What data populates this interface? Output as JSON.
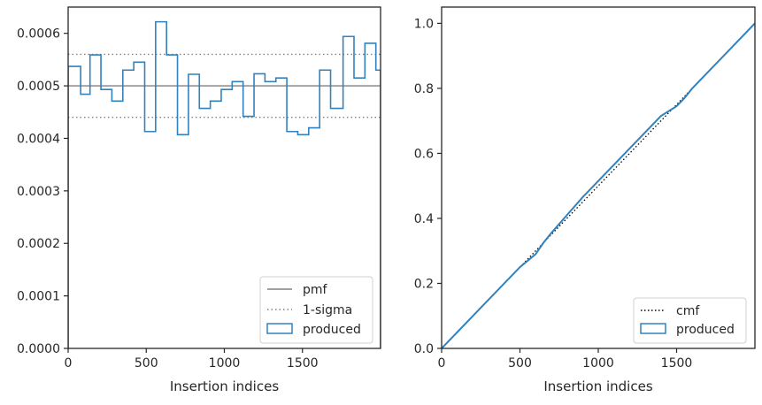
{
  "colors": {
    "produced": "#3182bd",
    "reference": "#808080",
    "cmf": "#000000",
    "axes": "#262626"
  },
  "chart_data": [
    {
      "type": "line",
      "step": true,
      "title": "",
      "xlabel": "Insertion indices",
      "ylabel": "",
      "xlim": [
        0,
        2000
      ],
      "ylim": [
        0,
        0.00065
      ],
      "x_ticks": [
        0,
        500,
        1000,
        1500
      ],
      "x_tick_labels": [
        "0",
        "500",
        "1000",
        "1500"
      ],
      "y_ticks": [
        0,
        0.0001,
        0.0002,
        0.0003,
        0.0004,
        0.0005,
        0.0006
      ],
      "y_tick_labels": [
        "0.0000",
        "0.0001",
        "0.0002",
        "0.0003",
        "0.0004",
        "0.0005",
        "0.0006"
      ],
      "legend_position": "bottom-right",
      "reference_lines": [
        {
          "name": "pmf",
          "style": "solid",
          "y": 0.0005
        },
        {
          "name": "1-sigma",
          "style": "dotted",
          "y": [
            0.00044,
            0.00056
          ]
        }
      ],
      "series": [
        {
          "name": "produced",
          "bin_edges": [
            0,
            80,
            140,
            210,
            280,
            350,
            420,
            490,
            560,
            630,
            700,
            770,
            840,
            910,
            980,
            1050,
            1120,
            1190,
            1260,
            1330,
            1400,
            1470,
            1540,
            1610,
            1680,
            1760,
            1830,
            1900,
            1970,
            2000
          ],
          "values": [
            0.000537,
            0.000484,
            0.000559,
            0.000493,
            0.000471,
            0.00053,
            0.000545,
            0.000413,
            0.000622,
            0.000559,
            0.000407,
            0.000522,
            0.000457,
            0.000471,
            0.000493,
            0.000508,
            0.000442,
            0.000523,
            0.000508,
            0.000515,
            0.000413,
            0.000407,
            0.00042,
            0.00053,
            0.000457,
            0.000594,
            0.000515,
            0.000581,
            0.00053
          ]
        }
      ]
    },
    {
      "type": "line",
      "title": "",
      "xlabel": "Insertion indices",
      "ylabel": "",
      "xlim": [
        0,
        2000
      ],
      "ylim": [
        0,
        1.05
      ],
      "x_ticks": [
        0,
        500,
        1000,
        1500
      ],
      "x_tick_labels": [
        "0",
        "500",
        "1000",
        "1500"
      ],
      "y_ticks": [
        0,
        0.2,
        0.4,
        0.6,
        0.8,
        1.0
      ],
      "y_tick_labels": [
        "0.0",
        "0.2",
        "0.4",
        "0.6",
        "0.8",
        "1.0"
      ],
      "legend_position": "bottom-right",
      "series": [
        {
          "name": "cmf",
          "style": "dotted",
          "x": [
            0,
            2000
          ],
          "y": [
            0,
            1.0
          ]
        },
        {
          "name": "produced",
          "x": [
            0,
            100,
            200,
            300,
            400,
            500,
            600,
            650,
            700,
            800,
            900,
            1000,
            1100,
            1200,
            1300,
            1400,
            1500,
            1550,
            1600,
            1700,
            1800,
            1900,
            2000
          ],
          "y": [
            0,
            0.05,
            0.1,
            0.15,
            0.2,
            0.25,
            0.29,
            0.325,
            0.355,
            0.41,
            0.465,
            0.515,
            0.565,
            0.615,
            0.665,
            0.715,
            0.745,
            0.77,
            0.8,
            0.85,
            0.9,
            0.95,
            1.0
          ]
        }
      ]
    }
  ]
}
